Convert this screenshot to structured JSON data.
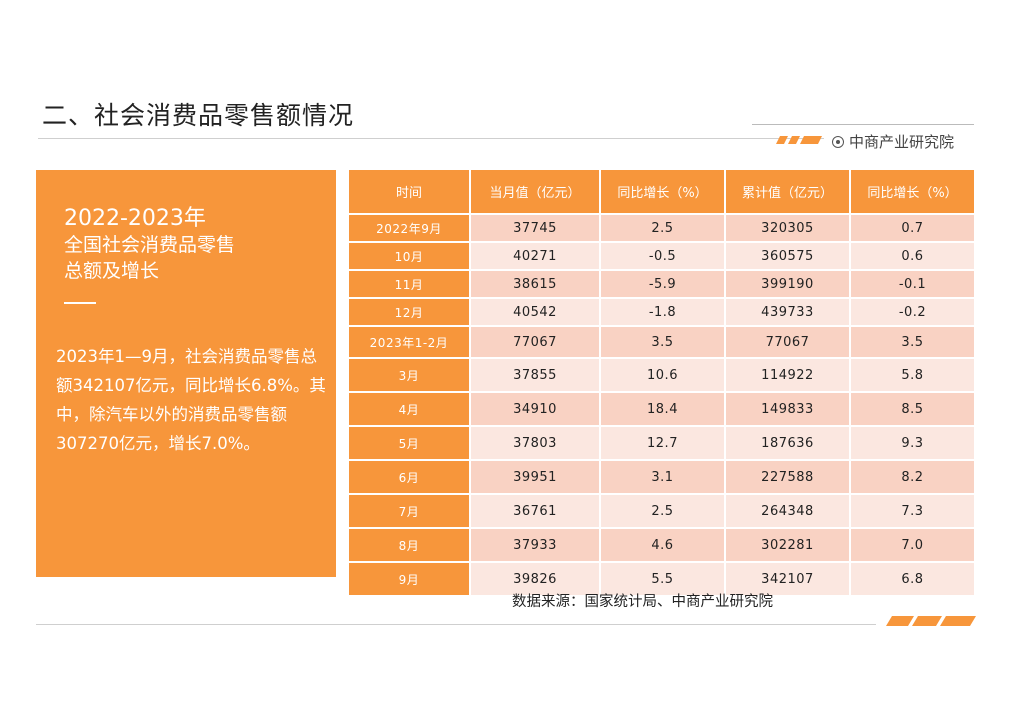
{
  "page": {
    "title": "二、社会消费品零售额情况",
    "brand": "中商产业研究院"
  },
  "panel": {
    "heading_year": "2022-2023年",
    "heading_line2": "全国社会消费品零售",
    "heading_line3": "总额及增长",
    "body": "2023年1—9月，社会消费品零售总额342107亿元，同比增长6.8%。其中，除汽车以外的消费品零售额307270亿元，增长7.0%。"
  },
  "table": {
    "headers": [
      "时间",
      "当月值（亿元）",
      "同比增长（%）",
      "累计值（亿元）",
      "同比增长（%）"
    ],
    "rows": [
      [
        "2022年9月",
        "37745",
        "2.5",
        "320305",
        "0.7"
      ],
      [
        "10月",
        "40271",
        "-0.5",
        "360575",
        "0.6"
      ],
      [
        "11月",
        "38615",
        "-5.9",
        "399190",
        "-0.1"
      ],
      [
        "12月",
        "40542",
        "-1.8",
        "439733",
        "-0.2"
      ],
      [
        "2023年1-2月",
        "77067",
        "3.5",
        "77067",
        "3.5"
      ],
      [
        "3月",
        "37855",
        "10.6",
        "114922",
        "5.8"
      ],
      [
        "4月",
        "34910",
        "18.4",
        "149833",
        "8.5"
      ],
      [
        "5月",
        "37803",
        "12.7",
        "187636",
        "9.3"
      ],
      [
        "6月",
        "39951",
        "3.1",
        "227588",
        "8.2"
      ],
      [
        "7月",
        "36761",
        "2.5",
        "264348",
        "7.3"
      ],
      [
        "8月",
        "37933",
        "4.6",
        "302281",
        "7.0"
      ],
      [
        "9月",
        "39826",
        "5.5",
        "342107",
        "6.8"
      ]
    ]
  },
  "source": "数据来源：国家统计局、中商产业研究院",
  "colors": {
    "accent": "#f7963b",
    "row_dark": "#f9d2c3",
    "row_light": "#fbe7e0"
  }
}
